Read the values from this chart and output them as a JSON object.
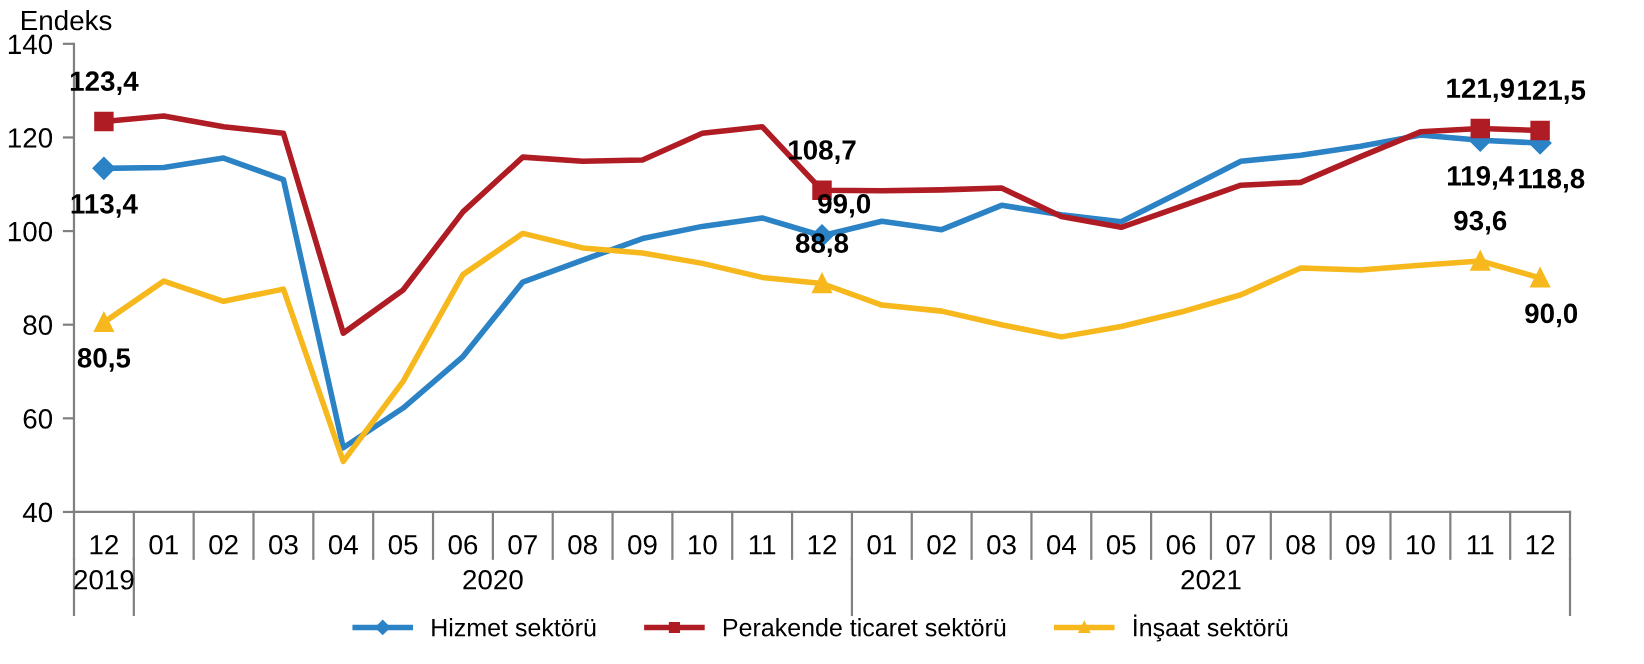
{
  "chart_data": {
    "type": "line",
    "ylabel": "Endeks",
    "categories": [
      "12",
      "01",
      "02",
      "03",
      "04",
      "05",
      "06",
      "07",
      "08",
      "09",
      "10",
      "11",
      "12",
      "01",
      "02",
      "03",
      "04",
      "05",
      "06",
      "07",
      "08",
      "09",
      "10",
      "11",
      "12"
    ],
    "annotations": [
      "2019",
      "2020",
      "2021"
    ],
    "ylim": [
      40,
      140
    ],
    "yticks": [
      40,
      60,
      80,
      100,
      120,
      140
    ],
    "grid": false,
    "legend": "bottom",
    "line_style": "solid",
    "series": [
      {
        "name": "Hizmet sektörü",
        "color": "#2b83c6",
        "values": [
          113.4,
          113.6,
          115.6,
          111.0,
          53.7,
          62.2,
          73.2,
          89.1,
          93.8,
          98.4,
          101.0,
          102.8,
          99.0,
          102.1,
          100.3,
          105.5,
          103.5,
          102.0,
          108.4,
          114.9,
          116.2,
          118.1,
          120.5,
          119.4,
          118.8
        ],
        "value_labels": [
          "113,4",
          null,
          null,
          null,
          null,
          null,
          null,
          null,
          null,
          null,
          null,
          null,
          "99,0",
          null,
          null,
          null,
          null,
          null,
          null,
          null,
          null,
          null,
          null,
          "119,4",
          "118,8"
        ]
      },
      {
        "name": "Perakende ticaret sektörü",
        "color": "#b01c24",
        "values": [
          123.4,
          124.6,
          122.3,
          120.9,
          78.2,
          87.4,
          104.1,
          115.8,
          114.9,
          115.2,
          120.9,
          122.3,
          108.7,
          108.6,
          108.8,
          109.2,
          103.1,
          100.8,
          105.3,
          109.8,
          110.4,
          115.9,
          121.2,
          121.9,
          121.5
        ],
        "value_labels": [
          "123,4",
          null,
          null,
          null,
          null,
          null,
          null,
          null,
          null,
          null,
          null,
          null,
          "108,7",
          null,
          null,
          null,
          null,
          null,
          null,
          null,
          null,
          null,
          null,
          "121,9",
          "121,5"
        ]
      },
      {
        "name": "İnşaat sektörü",
        "color": "#f6b81c",
        "values": [
          80.5,
          89.3,
          85.0,
          87.6,
          50.8,
          67.9,
          90.7,
          99.5,
          96.4,
          95.3,
          93.1,
          90.1,
          88.8,
          84.2,
          82.9,
          80.0,
          77.4,
          79.6,
          82.7,
          86.4,
          92.1,
          91.7,
          92.7,
          93.6,
          90.0
        ],
        "value_labels": [
          "80,5",
          null,
          null,
          null,
          null,
          null,
          null,
          null,
          null,
          null,
          null,
          null,
          "88,8",
          null,
          null,
          null,
          null,
          null,
          null,
          null,
          null,
          null,
          null,
          "93,6",
          "90,0"
        ]
      }
    ]
  }
}
